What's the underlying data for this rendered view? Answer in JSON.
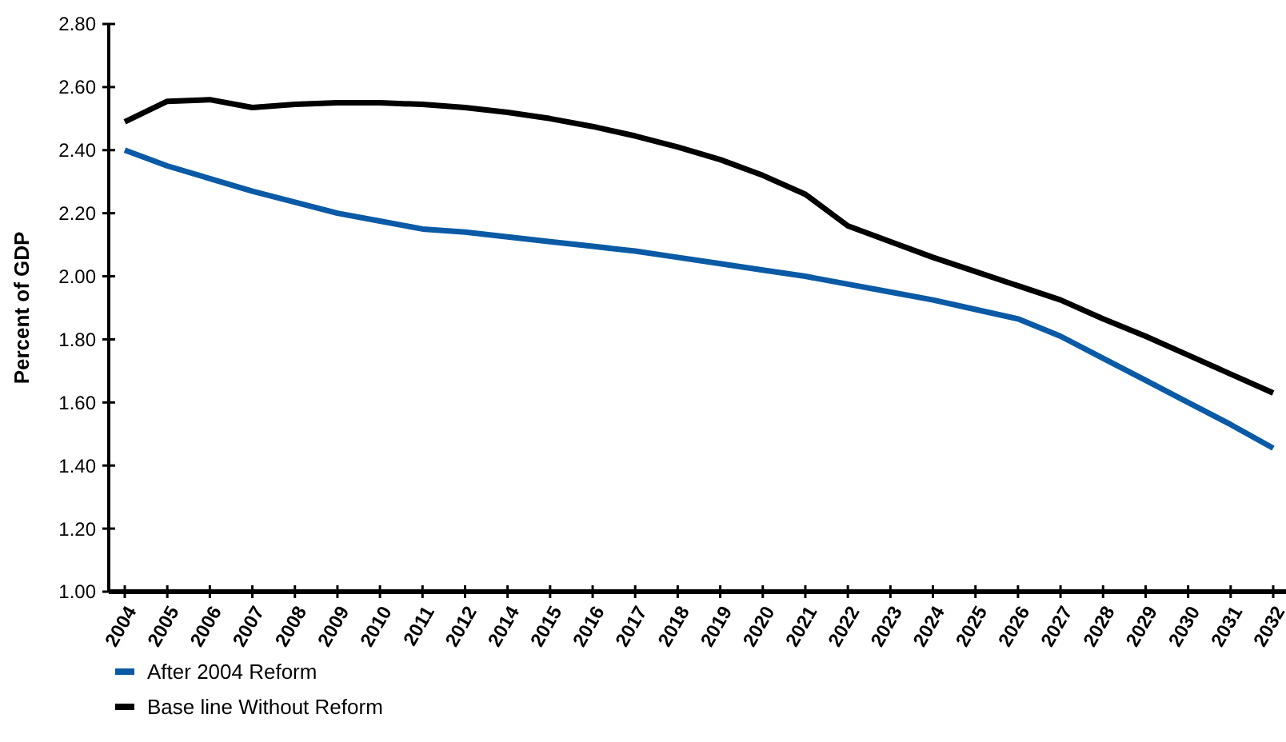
{
  "chart_data": {
    "type": "line",
    "ylabel": "Percent of GDP",
    "categories": [
      "2004",
      "2005",
      "2006",
      "2007",
      "2008",
      "2009",
      "2010",
      "2011",
      "2012",
      "2014",
      "2015",
      "2016",
      "2017",
      "2018",
      "2019",
      "2020",
      "2021",
      "2022",
      "2023",
      "2024",
      "2025",
      "2026",
      "2027",
      "2028",
      "2029",
      "2030",
      "2031",
      "2032"
    ],
    "series": [
      {
        "name": "After 2004 Reform",
        "color": "#0a5aa6",
        "values": [
          2.4,
          2.35,
          2.31,
          2.27,
          2.235,
          2.2,
          2.175,
          2.15,
          2.14,
          2.125,
          2.11,
          2.095,
          2.08,
          2.06,
          2.04,
          2.02,
          2.0,
          1.975,
          1.95,
          1.925,
          1.895,
          1.865,
          1.81,
          1.74,
          1.67,
          1.6,
          1.53,
          1.455
        ]
      },
      {
        "name": "Base line Without Reform",
        "color": "#000000",
        "values": [
          2.49,
          2.555,
          2.56,
          2.535,
          2.545,
          2.55,
          2.55,
          2.545,
          2.535,
          2.52,
          2.5,
          2.475,
          2.445,
          2.41,
          2.37,
          2.32,
          2.26,
          2.16,
          2.11,
          2.06,
          2.015,
          1.97,
          1.925,
          1.865,
          1.81,
          1.75,
          1.69,
          1.63
        ]
      }
    ],
    "ylim": [
      1,
      2.8
    ],
    "yticks": [
      {
        "value": 1,
        "label": "1.00"
      },
      {
        "value": 1.2,
        "label": "1.20"
      },
      {
        "value": 1.4,
        "label": "1.40"
      },
      {
        "value": 1.6,
        "label": "1.60"
      },
      {
        "value": 1.8,
        "label": "1.80"
      },
      {
        "value": 2,
        "label": "2.00"
      },
      {
        "value": 2.2,
        "label": "2.20"
      },
      {
        "value": 2.4,
        "label": "2.40"
      },
      {
        "value": 2.6,
        "label": "2.60"
      },
      {
        "value": 2.8,
        "label": "2.80"
      }
    ],
    "grid": false,
    "legend": "bottom left",
    "marker": "none",
    "line_style": "solid"
  }
}
